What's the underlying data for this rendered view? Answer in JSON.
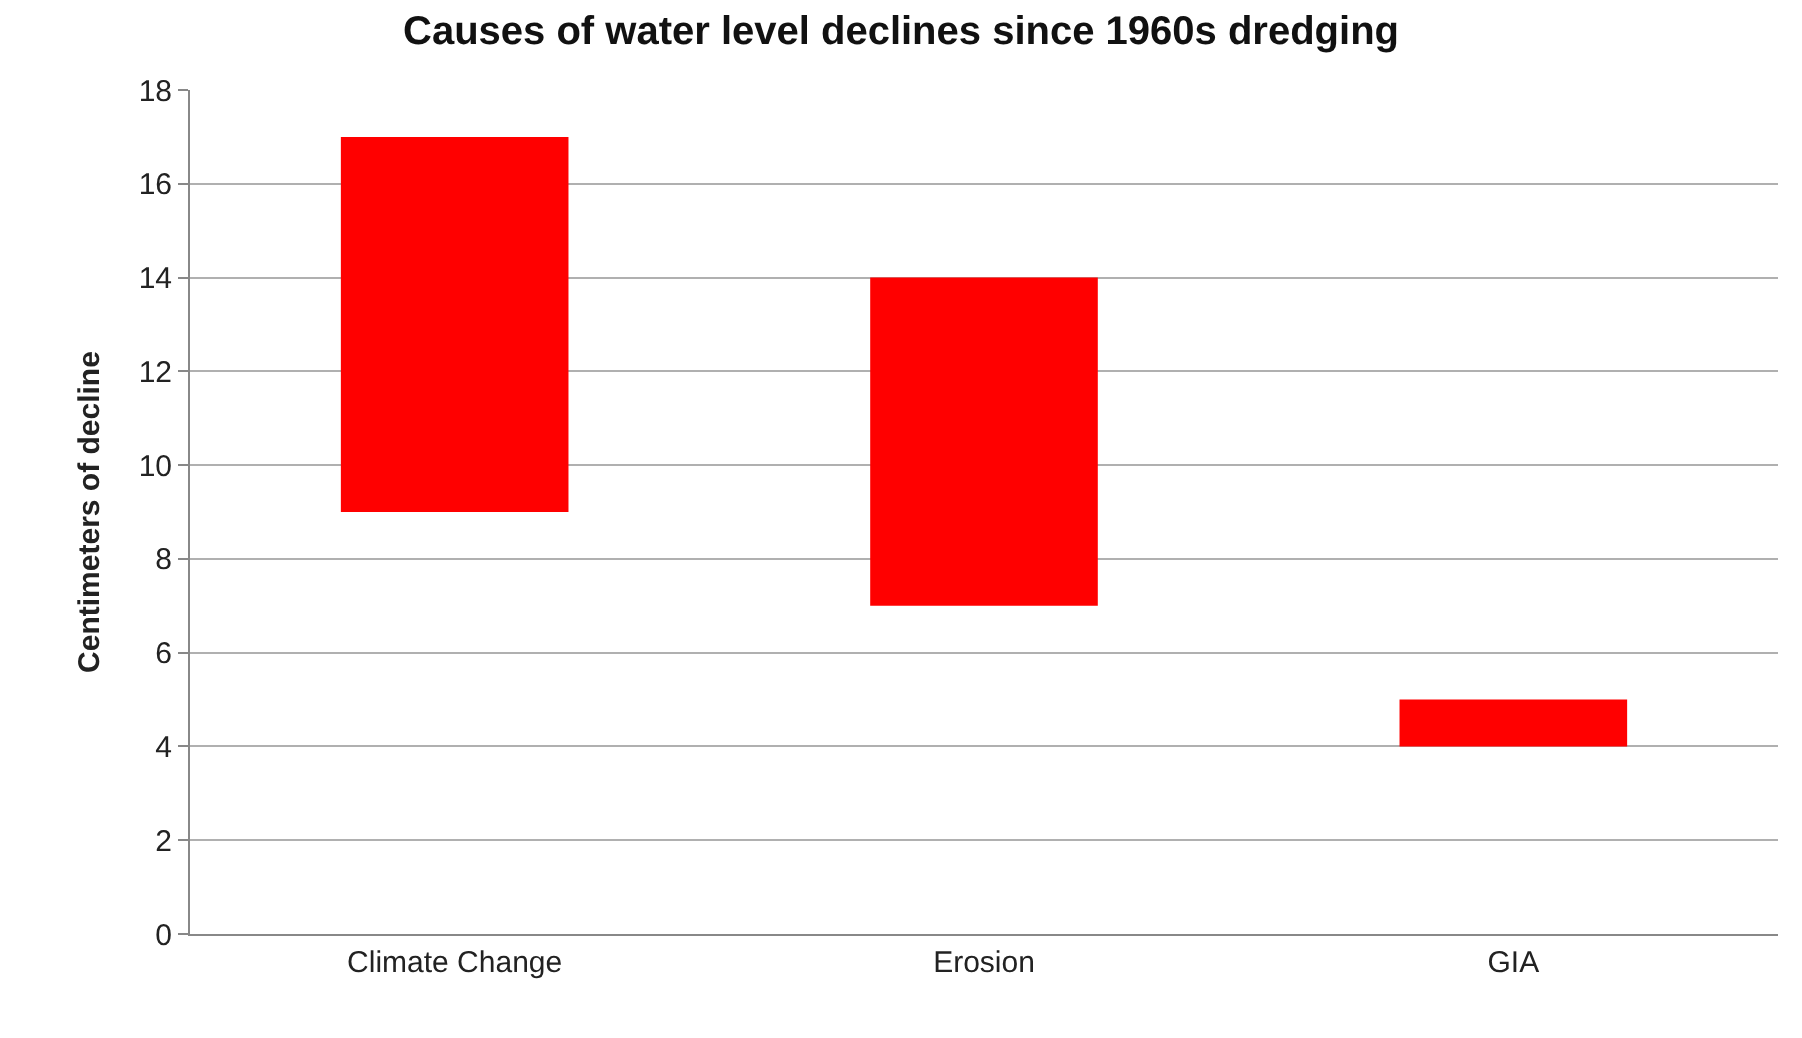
{
  "chart_data": {
    "type": "bar",
    "title": "Causes of water level declines since 1960s dredging",
    "ylabel": "Centimeters of decline",
    "categories": [
      "Climate Change",
      "Erosion",
      "GIA"
    ],
    "values": [
      8,
      7,
      1
    ],
    "base": [
      9,
      7,
      4
    ],
    "color": "#ff0000",
    "ylim": [
      0,
      18
    ],
    "yticks": [
      0,
      2,
      4,
      6,
      8,
      10,
      12,
      14,
      16,
      18
    ],
    "grid": "y"
  }
}
